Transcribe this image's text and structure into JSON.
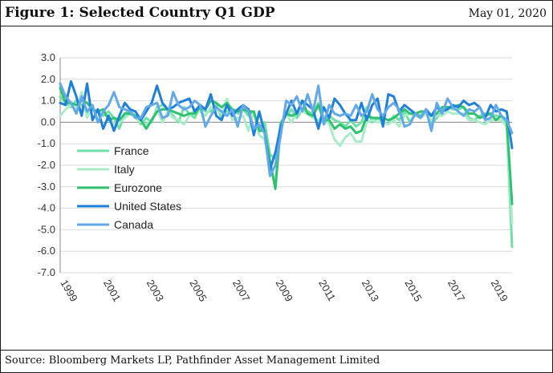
{
  "header": {
    "title": "Figure 1: Selected Country Q1 GDP",
    "date": "May 01, 2020"
  },
  "footer": {
    "source": "Source: Bloomberg Markets LP, Pathfinder Asset Management Limited"
  },
  "chart_data": {
    "type": "line",
    "title": "Figure 1: Selected Country Q1 GDP",
    "xlabel": "",
    "ylabel": "",
    "xlim": [
      1999,
      2020
    ],
    "ylim": [
      -7.0,
      3.0
    ],
    "y_ticks": [
      "3.0",
      "2.0",
      "1.0",
      "0.0",
      "-1.0",
      "-2.0",
      "-3.0",
      "-4.0",
      "-5.0",
      "-6.0",
      "-7.0"
    ],
    "x_ticks": [
      "1999",
      "2001",
      "2003",
      "2005",
      "2007",
      "2009",
      "2011",
      "2013",
      "2015",
      "2017",
      "2019"
    ],
    "grid": "horizontal",
    "legend_position": "left-center",
    "x": [
      1999.0,
      1999.25,
      1999.5,
      1999.75,
      2000.0,
      2000.25,
      2000.5,
      2000.75,
      2001.0,
      2001.25,
      2001.5,
      2001.75,
      2002.0,
      2002.25,
      2002.5,
      2002.75,
      2003.0,
      2003.25,
      2003.5,
      2003.75,
      2004.0,
      2004.25,
      2004.5,
      2004.75,
      2005.0,
      2005.25,
      2005.5,
      2005.75,
      2006.0,
      2006.25,
      2006.5,
      2006.75,
      2007.0,
      2007.25,
      2007.5,
      2007.75,
      2008.0,
      2008.25,
      2008.5,
      2008.75,
      2009.0,
      2009.25,
      2009.5,
      2009.75,
      2010.0,
      2010.25,
      2010.5,
      2010.75,
      2011.0,
      2011.25,
      2011.5,
      2011.75,
      2012.0,
      2012.25,
      2012.5,
      2012.75,
      2013.0,
      2013.25,
      2013.5,
      2013.75,
      2014.0,
      2014.25,
      2014.5,
      2014.75,
      2015.0,
      2015.25,
      2015.5,
      2015.75,
      2016.0,
      2016.25,
      2016.5,
      2016.75,
      2017.0,
      2017.25,
      2017.5,
      2017.75,
      2018.0,
      2018.25,
      2018.5,
      2018.75,
      2019.0,
      2019.25,
      2019.5,
      2019.75,
      2020.0
    ],
    "series": [
      {
        "name": "France",
        "color": "#6fe0a8",
        "width": 3,
        "values": [
          1.2,
          0.9,
          0.7,
          1.0,
          0.8,
          0.4,
          0.6,
          0.5,
          0.3,
          0.5,
          0.2,
          -0.3,
          0.4,
          0.5,
          0.3,
          -0.1,
          0.2,
          0.0,
          0.7,
          0.8,
          0.6,
          0.3,
          0.0,
          0.7,
          0.4,
          0.2,
          0.7,
          0.5,
          0.5,
          0.8,
          0.2,
          0.5,
          0.6,
          0.4,
          0.6,
          0.3,
          0.5,
          -0.4,
          0.0,
          -1.5,
          -1.7,
          0.0,
          0.3,
          0.6,
          0.2,
          0.6,
          0.5,
          0.4,
          0.9,
          -0.1,
          0.3,
          0.1,
          0.0,
          -0.2,
          0.1,
          -0.2,
          0.0,
          0.7,
          0.0,
          0.2,
          0.0,
          -0.1,
          0.3,
          0.1,
          0.5,
          0.0,
          0.4,
          0.3,
          0.6,
          -0.1,
          0.2,
          0.5,
          0.7,
          0.6,
          0.6,
          0.7,
          0.2,
          0.1,
          0.3,
          0.4,
          0.4,
          0.3,
          0.3,
          -0.1,
          -5.8
        ]
      },
      {
        "name": "Italy",
        "color": "#a9ecc7",
        "width": 3,
        "values": [
          0.3,
          0.6,
          0.8,
          0.6,
          1.4,
          0.2,
          0.8,
          0.1,
          0.5,
          0.3,
          -0.1,
          0.0,
          0.2,
          0.4,
          0.2,
          0.0,
          -0.1,
          0.1,
          0.6,
          0.0,
          0.5,
          0.2,
          0.1,
          -0.1,
          0.3,
          0.6,
          0.5,
          0.3,
          0.7,
          0.6,
          0.4,
          1.1,
          0.1,
          0.2,
          0.3,
          -0.4,
          0.5,
          -0.6,
          -0.8,
          -2.0,
          -2.8,
          -0.3,
          0.4,
          0.0,
          0.5,
          0.5,
          0.4,
          0.2,
          0.1,
          0.3,
          -0.1,
          -0.8,
          -1.1,
          -0.7,
          -0.5,
          -0.9,
          -0.9,
          0.0,
          0.1,
          0.0,
          0.0,
          -0.1,
          0.1,
          -0.2,
          0.3,
          0.4,
          0.3,
          0.2,
          0.4,
          0.1,
          0.3,
          0.3,
          0.5,
          0.4,
          0.4,
          0.4,
          0.1,
          0.1,
          0.0,
          -0.1,
          0.1,
          0.1,
          0.1,
          -0.2,
          -4.7
        ]
      },
      {
        "name": "Eurozone",
        "color": "#2ec26e",
        "width": 3,
        "values": [
          1.6,
          0.9,
          0.9,
          0.8,
          1.0,
          0.9,
          0.6,
          0.5,
          0.6,
          0.1,
          0.2,
          0.1,
          0.4,
          0.4,
          0.3,
          0.1,
          -0.3,
          0.1,
          0.5,
          0.6,
          0.6,
          0.5,
          0.4,
          0.3,
          0.4,
          0.4,
          0.7,
          0.6,
          1.0,
          0.9,
          0.7,
          0.9,
          0.6,
          0.5,
          0.6,
          0.5,
          0.5,
          -0.4,
          -0.4,
          -1.8,
          -3.1,
          -0.1,
          0.4,
          0.3,
          0.4,
          1.0,
          0.4,
          0.3,
          0.8,
          0.1,
          0.1,
          -0.3,
          -0.1,
          -0.3,
          -0.2,
          -0.5,
          -0.4,
          0.3,
          0.2,
          0.2,
          0.2,
          0.1,
          0.2,
          0.4,
          0.6,
          0.4,
          0.4,
          0.5,
          0.5,
          0.3,
          0.4,
          0.7,
          0.7,
          0.7,
          0.8,
          0.7,
          0.4,
          0.4,
          0.2,
          0.3,
          0.4,
          0.1,
          0.3,
          0.1,
          -3.8
        ]
      },
      {
        "name": "United States",
        "color": "#1f80dc",
        "width": 3,
        "values": [
          0.9,
          0.8,
          1.9,
          1.2,
          0.3,
          1.8,
          0.1,
          0.6,
          -0.3,
          0.3,
          -0.4,
          0.3,
          0.9,
          0.6,
          0.5,
          0.1,
          0.5,
          0.9,
          1.7,
          0.9,
          0.6,
          0.7,
          0.9,
          1.0,
          1.1,
          0.5,
          0.8,
          0.6,
          1.3,
          0.3,
          0.1,
          0.8,
          0.3,
          0.6,
          0.8,
          0.6,
          -0.6,
          0.5,
          -0.5,
          -2.2,
          -1.4,
          -0.2,
          0.4,
          1.0,
          0.4,
          1.0,
          0.8,
          0.6,
          -0.3,
          0.7,
          0.2,
          1.1,
          0.8,
          0.4,
          0.1,
          0.1,
          0.9,
          0.1,
          0.8,
          1.1,
          -0.2,
          1.3,
          1.2,
          0.5,
          0.8,
          0.6,
          0.4,
          0.2,
          0.6,
          0.3,
          0.7,
          0.5,
          0.6,
          0.8,
          0.7,
          1.0,
          0.8,
          0.9,
          0.7,
          0.2,
          0.8,
          0.5,
          0.6,
          0.5,
          -1.2
        ]
      },
      {
        "name": "Canada",
        "color": "#62a8ea",
        "width": 3,
        "values": [
          1.8,
          1.2,
          0.9,
          0.4,
          1.2,
          0.5,
          0.8,
          0.0,
          0.5,
          0.8,
          1.4,
          0.7,
          0.6,
          0.5,
          0.2,
          0.2,
          0.7,
          0.8,
          0.9,
          0.2,
          0.3,
          1.4,
          0.8,
          0.6,
          0.7,
          1.0,
          0.8,
          -0.2,
          0.3,
          0.7,
          0.5,
          0.3,
          0.6,
          -0.2,
          0.8,
          0.5,
          -0.3,
          -0.1,
          -0.5,
          -2.5,
          -2.0,
          -0.6,
          1.0,
          0.8,
          1.2,
          0.5,
          1.3,
          0.5,
          1.7,
          -0.1,
          0.8,
          0.4,
          0.3,
          0.4,
          0.3,
          0.8,
          0.3,
          0.5,
          1.3,
          0.6,
          0.3,
          0.7,
          0.9,
          0.6,
          -0.2,
          -0.1,
          0.4,
          0.2,
          0.6,
          -0.4,
          0.9,
          0.4,
          1.1,
          0.7,
          0.5,
          0.3,
          0.6,
          0.5,
          0.7,
          0.1,
          0.2,
          0.8,
          0.3,
          0.1,
          -0.5
        ]
      }
    ]
  }
}
